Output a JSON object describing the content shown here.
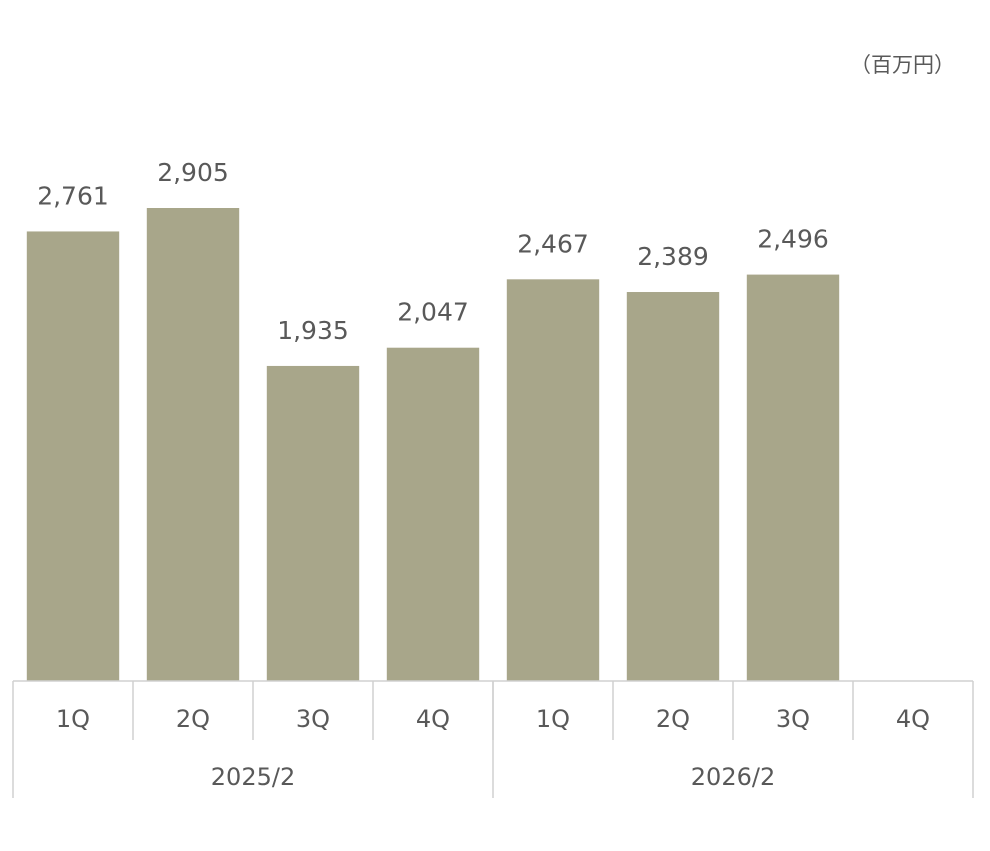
{
  "chart_data": {
    "type": "bar",
    "unit_label": "（百万円）",
    "categories": [
      "1Q",
      "2Q",
      "3Q",
      "4Q",
      "1Q",
      "2Q",
      "3Q",
      "4Q"
    ],
    "groups": [
      "2025/2",
      "2026/2"
    ],
    "values": [
      2761,
      2905,
      1935,
      2047,
      2467,
      2389,
      2496,
      null
    ],
    "value_labels": [
      "2,761",
      "2,905",
      "1,935",
      "2,047",
      "2,467",
      "2,389",
      "2,496",
      null
    ],
    "color": "#a8a68a"
  }
}
